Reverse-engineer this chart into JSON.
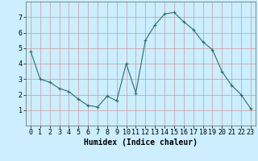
{
  "x": [
    0,
    1,
    2,
    3,
    4,
    5,
    6,
    7,
    8,
    9,
    10,
    11,
    12,
    13,
    14,
    15,
    16,
    17,
    18,
    19,
    20,
    21,
    22,
    23
  ],
  "y": [
    4.8,
    3.0,
    2.8,
    2.4,
    2.2,
    1.7,
    1.3,
    1.2,
    1.9,
    1.6,
    4.0,
    2.1,
    5.5,
    6.5,
    7.2,
    7.3,
    6.7,
    6.2,
    5.4,
    4.9,
    3.5,
    2.6,
    2.0,
    1.1
  ],
  "line_color": "#2d6e6e",
  "marker": "+",
  "marker_size": 3,
  "bg_color": "#cceeff",
  "grid_color": "#cc9999",
  "xlabel": "Humidex (Indice chaleur)",
  "xlabel_fontsize": 7,
  "tick_fontsize": 6,
  "xlim": [
    -0.5,
    23.5
  ],
  "ylim": [
    0,
    8
  ],
  "yticks": [
    1,
    2,
    3,
    4,
    5,
    6,
    7
  ],
  "xticks": [
    0,
    1,
    2,
    3,
    4,
    5,
    6,
    7,
    8,
    9,
    10,
    11,
    12,
    13,
    14,
    15,
    16,
    17,
    18,
    19,
    20,
    21,
    22,
    23
  ]
}
